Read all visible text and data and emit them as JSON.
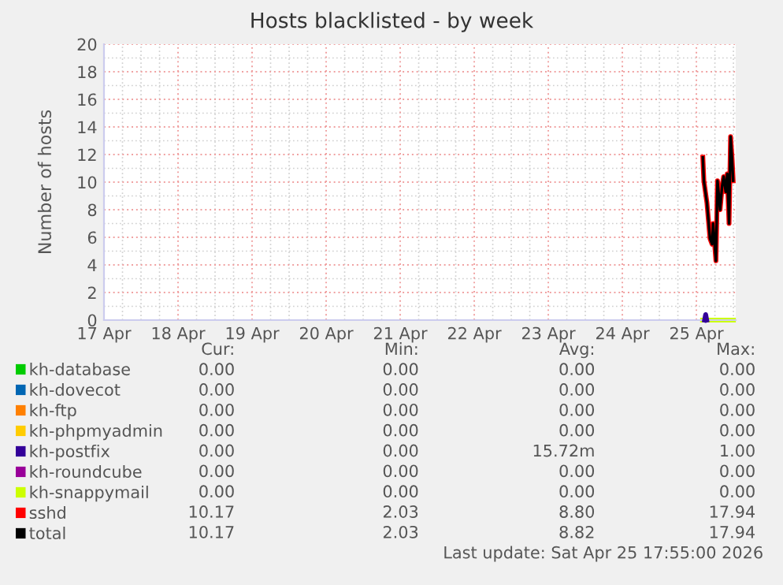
{
  "chart_data": {
    "type": "line",
    "title": "Hosts blacklisted - by week",
    "ylabel": "Number of hosts",
    "xlim": [
      "2026-04-17T00:00",
      "2026-04-25T12:45"
    ],
    "xticks": [
      {
        "value": "2026-04-17",
        "label": "17 Apr"
      },
      {
        "value": "2026-04-18",
        "label": "18 Apr"
      },
      {
        "value": "2026-04-19",
        "label": "19 Apr"
      },
      {
        "value": "2026-04-20",
        "label": "20 Apr"
      },
      {
        "value": "2026-04-21",
        "label": "21 Apr"
      },
      {
        "value": "2026-04-22",
        "label": "22 Apr"
      },
      {
        "value": "2026-04-23",
        "label": "23 Apr"
      },
      {
        "value": "2026-04-24",
        "label": "24 Apr"
      },
      {
        "value": "2026-04-25",
        "label": "25 Apr"
      }
    ],
    "ylim": [
      0,
      20
    ],
    "yticks": [
      0,
      2,
      4,
      6,
      8,
      10,
      12,
      14,
      16,
      18,
      20
    ],
    "grid": true,
    "legend": "bottom",
    "series": [
      {
        "name": "kh-database",
        "color": "#00cc00"
      },
      {
        "name": "kh-dovecot",
        "color": "#0066b3"
      },
      {
        "name": "kh-ftp",
        "color": "#ff8000"
      },
      {
        "name": "kh-phpmyadmin",
        "color": "#ffcc00"
      },
      {
        "name": "kh-postfix",
        "color": "#330099",
        "x": [
          "2026-04-25T02:40",
          "2026-04-25T03:00",
          "2026-04-25T03:20"
        ],
        "values": [
          0,
          0.4,
          0
        ]
      },
      {
        "name": "kh-roundcube",
        "color": "#990099"
      },
      {
        "name": "kh-snappymail",
        "color": "#ccff00",
        "x": [
          "2026-04-25T02:00",
          "2026-04-25T12:00"
        ],
        "values": [
          0,
          0
        ]
      },
      {
        "name": "sshd",
        "color": "#ff0000",
        "x": [
          "2026-04-25T02:05",
          "2026-04-25T02:25",
          "2026-04-25T03:25",
          "2026-04-25T04:25",
          "2026-04-25T05:05",
          "2026-04-25T05:25",
          "2026-04-25T06:20",
          "2026-04-25T06:50",
          "2026-04-25T07:20",
          "2026-04-25T07:40",
          "2026-04-25T08:20",
          "2026-04-25T08:50",
          "2026-04-25T09:30",
          "2026-04-25T10:00",
          "2026-04-25T10:35",
          "2026-04-25T11:05",
          "2026-04-25T11:35",
          "2026-04-25T11:55"
        ],
        "values": [
          11.8,
          10.1,
          8.5,
          5.9,
          5.5,
          7.0,
          4.3,
          10.1,
          8.9,
          8.0,
          9.7,
          10.4,
          9.3,
          10.6,
          7.0,
          13.3,
          11.6,
          10.1
        ]
      },
      {
        "name": "total",
        "color": "#000000",
        "x": [
          "2026-04-25T02:05",
          "2026-04-25T02:25",
          "2026-04-25T03:25",
          "2026-04-25T04:25",
          "2026-04-25T05:05",
          "2026-04-25T05:25",
          "2026-04-25T06:20",
          "2026-04-25T06:50",
          "2026-04-25T07:20",
          "2026-04-25T07:40",
          "2026-04-25T08:20",
          "2026-04-25T08:50",
          "2026-04-25T09:30",
          "2026-04-25T10:00",
          "2026-04-25T10:35",
          "2026-04-25T11:05",
          "2026-04-25T11:35",
          "2026-04-25T11:55"
        ],
        "values": [
          11.8,
          10.1,
          8.5,
          5.9,
          5.5,
          7.0,
          4.3,
          10.1,
          8.9,
          8.0,
          9.7,
          10.4,
          9.3,
          10.6,
          7.0,
          13.3,
          11.6,
          10.1
        ]
      }
    ],
    "annotations": [
      "Cur:",
      "Min:",
      "Avg:",
      "Max:",
      "0.00",
      "0.00",
      "0.00",
      "0.00",
      "0.00",
      "0.00",
      "0.00",
      "0.00",
      "0.00",
      "0.00",
      "0.00",
      "0.00",
      "0.00",
      "0.00",
      "0.00",
      "0.00",
      "0.00",
      "0.00",
      "15.72m",
      "1.00",
      "0.00",
      "0.00",
      "0.00",
      "0.00",
      "0.00",
      "0.00",
      "0.00",
      "0.00",
      "10.17",
      "2.03",
      "8.80",
      "17.94",
      "10.17",
      "2.03",
      "8.82",
      "17.94",
      "Last update: Sat Apr 25 17:55:00 2026"
    ]
  }
}
